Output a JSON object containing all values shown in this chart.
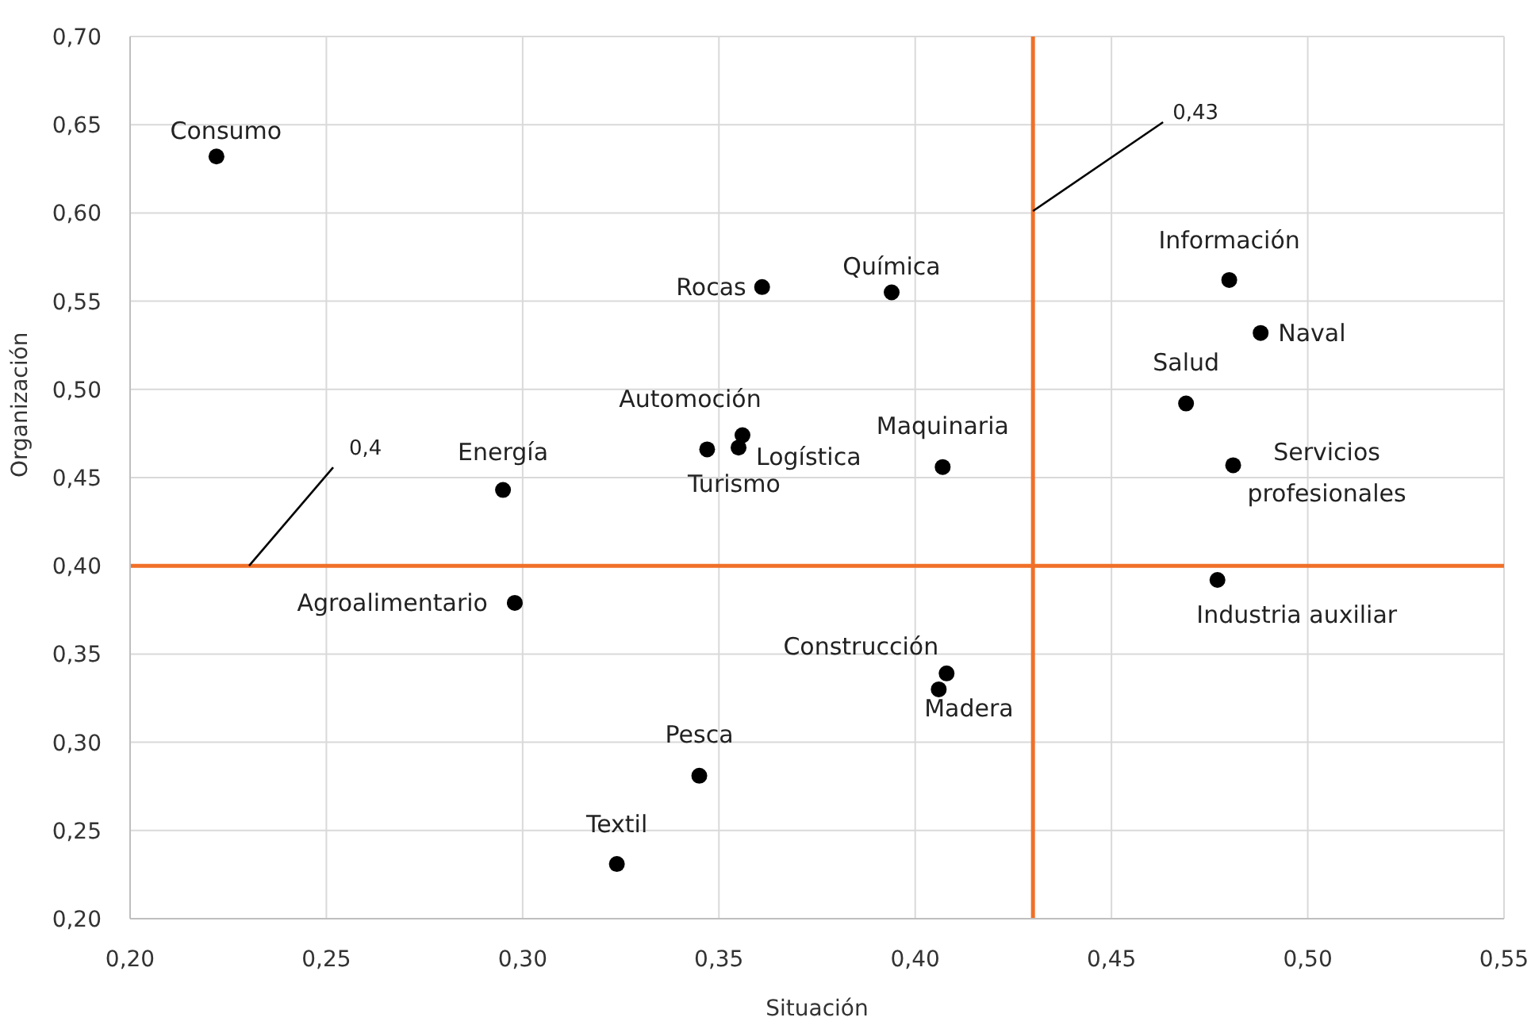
{
  "chart_data": {
    "type": "scatter",
    "xlabel": "Situación",
    "ylabel": "Organización",
    "series": [
      {
        "color": "#000000",
        "x": [
          0.222,
          0.361,
          0.394,
          0.356,
          0.347,
          0.355,
          0.295,
          0.407,
          0.48,
          0.488,
          0.469,
          0.481,
          0.298,
          0.477,
          0.408,
          0.406,
          0.345,
          0.324
        ],
        "values": [
          0.632,
          0.558,
          0.555,
          0.474,
          0.466,
          0.467,
          0.443,
          0.456,
          0.562,
          0.532,
          0.492,
          0.457,
          0.379,
          0.392,
          0.339,
          0.33,
          0.281,
          0.231
        ]
      }
    ],
    "annotations": [
      {
        "text": "Consumo",
        "x": 0.222,
        "y": 0.632
      },
      {
        "text": "Rocas",
        "x": 0.361,
        "y": 0.558
      },
      {
        "text": "Química",
        "x": 0.394,
        "y": 0.555
      },
      {
        "text": "Automoción",
        "x": 0.356,
        "y": 0.474
      },
      {
        "text": "Turismo",
        "x": 0.347,
        "y": 0.466
      },
      {
        "text": "Logística",
        "x": 0.355,
        "y": 0.467
      },
      {
        "text": "Energía",
        "x": 0.295,
        "y": 0.443
      },
      {
        "text": "Maquinaria",
        "x": 0.407,
        "y": 0.456
      },
      {
        "text": "Información",
        "x": 0.48,
        "y": 0.562
      },
      {
        "text": "Naval",
        "x": 0.488,
        "y": 0.532
      },
      {
        "text": "Salud",
        "x": 0.469,
        "y": 0.492
      },
      {
        "text": "Servicios profesionales",
        "x": 0.481,
        "y": 0.457
      },
      {
        "text": "Agroalimentario",
        "x": 0.298,
        "y": 0.379
      },
      {
        "text": "Industria auxiliar",
        "x": 0.477,
        "y": 0.392
      },
      {
        "text": "Construcción",
        "x": 0.408,
        "y": 0.339
      },
      {
        "text": "Madera",
        "x": 0.406,
        "y": 0.33
      },
      {
        "text": "Pesca",
        "x": 0.345,
        "y": 0.281
      },
      {
        "text": "Textil",
        "x": 0.324,
        "y": 0.231
      }
    ],
    "ref_lines": [
      {
        "axis": "y",
        "value": 0.4,
        "label": "0,4",
        "color": "#f07028"
      },
      {
        "axis": "x",
        "value": 0.43,
        "label": "0,43",
        "color": "#f07028"
      }
    ],
    "xlim": [
      0.2,
      0.55
    ],
    "xticks": [
      {
        "value": 0.2,
        "label": "0,20"
      },
      {
        "value": 0.25,
        "label": "0,25"
      },
      {
        "value": 0.3,
        "label": "0,30"
      },
      {
        "value": 0.35,
        "label": "0,35"
      },
      {
        "value": 0.4,
        "label": "0,40"
      },
      {
        "value": 0.45,
        "label": "0,45"
      },
      {
        "value": 0.5,
        "label": "0,50"
      },
      {
        "value": 0.55,
        "label": "0,55"
      }
    ],
    "ylim": [
      0.2,
      0.7
    ],
    "yticks": [
      {
        "value": 0.2,
        "label": "0,20"
      },
      {
        "value": 0.25,
        "label": "0,25"
      },
      {
        "value": 0.3,
        "label": "0,30"
      },
      {
        "value": 0.35,
        "label": "0,35"
      },
      {
        "value": 0.4,
        "label": "0,40"
      },
      {
        "value": 0.45,
        "label": "0,45"
      },
      {
        "value": 0.5,
        "label": "0,50"
      },
      {
        "value": 0.55,
        "label": "0,55"
      },
      {
        "value": 0.6,
        "label": "0,60"
      },
      {
        "value": 0.65,
        "label": "0,65"
      },
      {
        "value": 0.7,
        "label": "0,70"
      }
    ],
    "grid": true,
    "marker": "circle"
  }
}
